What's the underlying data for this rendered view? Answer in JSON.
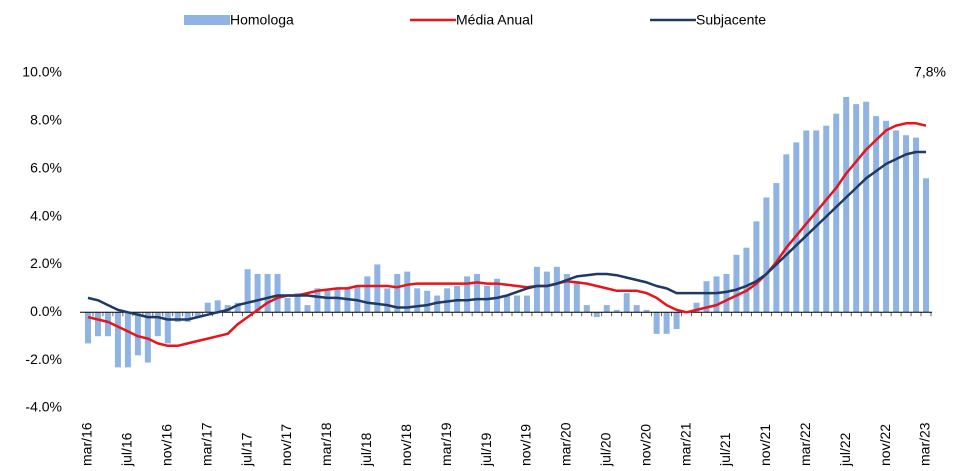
{
  "chart_data": {
    "type": "bar_line",
    "annotation": "7,8%",
    "categories": [
      "mar/16",
      null,
      null,
      null,
      "jul/16",
      null,
      null,
      null,
      "nov/16",
      null,
      null,
      null,
      "mar/17",
      null,
      null,
      null,
      "jul/17",
      null,
      null,
      null,
      "nov/17",
      null,
      null,
      null,
      "mar/18",
      null,
      null,
      null,
      "jul/18",
      null,
      null,
      null,
      "nov/18",
      null,
      null,
      null,
      "mar/19",
      null,
      null,
      null,
      "jul/19",
      null,
      null,
      null,
      "nov/19",
      null,
      null,
      null,
      "mar/20",
      null,
      null,
      null,
      "jul/20",
      null,
      null,
      null,
      "nov/20",
      null,
      null,
      null,
      "mar/21",
      null,
      null,
      null,
      "jul/21",
      null,
      null,
      null,
      "nov/21",
      null,
      null,
      null,
      "mar/22",
      null,
      null,
      null,
      "jul/22",
      null,
      null,
      null,
      "nov/22",
      null,
      null,
      null,
      "mar/23"
    ],
    "series": [
      {
        "name": "Homologa",
        "kind": "bar",
        "color": "#8fb4e3",
        "values": [
          -1.3,
          -1.0,
          -1.0,
          -2.3,
          -2.3,
          -1.8,
          -2.1,
          -1.0,
          -1.3,
          -0.4,
          -0.4,
          -0.2,
          0.4,
          0.5,
          0.3,
          0.4,
          1.8,
          1.6,
          1.6,
          1.6,
          0.6,
          0.8,
          0.3,
          1.0,
          0.9,
          1.0,
          1.0,
          1.1,
          1.5,
          2.0,
          1.0,
          1.6,
          1.7,
          1.0,
          0.9,
          0.7,
          1.0,
          1.1,
          1.5,
          1.6,
          1.1,
          1.4,
          0.7,
          0.7,
          0.7,
          1.9,
          1.7,
          1.9,
          1.6,
          1.3,
          0.3,
          -0.2,
          0.3,
          0.1,
          0.8,
          0.3,
          0.1,
          -0.9,
          -0.9,
          -0.7,
          0.0,
          0.4,
          1.3,
          1.5,
          1.6,
          2.4,
          2.7,
          3.8,
          4.8,
          5.4,
          6.6,
          7.1,
          7.6,
          7.6,
          7.8,
          8.3,
          9.0,
          8.7,
          8.8,
          8.2,
          8.0,
          7.6,
          7.4,
          7.3,
          5.6
        ]
      },
      {
        "name": "Média Anual",
        "kind": "line",
        "color": "#e8141b",
        "values": [
          -0.2,
          -0.3,
          -0.4,
          -0.6,
          -0.8,
          -1.0,
          -1.1,
          -1.3,
          -1.4,
          -1.4,
          -1.3,
          -1.2,
          -1.1,
          -1.0,
          -0.9,
          -0.5,
          -0.2,
          0.1,
          0.4,
          0.6,
          0.7,
          0.7,
          0.8,
          0.9,
          0.95,
          1.0,
          1.0,
          1.1,
          1.1,
          1.1,
          1.1,
          1.05,
          1.15,
          1.2,
          1.2,
          1.2,
          1.2,
          1.2,
          1.2,
          1.25,
          1.2,
          1.2,
          1.15,
          1.1,
          1.05,
          1.1,
          1.1,
          1.2,
          1.3,
          1.25,
          1.2,
          1.1,
          1.0,
          0.9,
          0.9,
          0.9,
          0.8,
          0.6,
          0.3,
          0.1,
          0.0,
          0.1,
          0.2,
          0.3,
          0.5,
          0.7,
          0.9,
          1.2,
          1.6,
          2.1,
          2.7,
          3.2,
          3.7,
          4.2,
          4.7,
          5.2,
          5.8,
          6.3,
          6.8,
          7.2,
          7.6,
          7.8,
          7.9,
          7.9,
          7.8
        ]
      },
      {
        "name": "Subjacente",
        "kind": "line",
        "color": "#1f3864",
        "values": [
          0.6,
          0.5,
          0.3,
          0.1,
          0.0,
          -0.1,
          -0.2,
          -0.2,
          -0.3,
          -0.3,
          -0.3,
          -0.2,
          -0.1,
          0.0,
          0.1,
          0.3,
          0.4,
          0.5,
          0.6,
          0.7,
          0.7,
          0.7,
          0.7,
          0.65,
          0.6,
          0.6,
          0.55,
          0.5,
          0.4,
          0.35,
          0.3,
          0.2,
          0.2,
          0.25,
          0.3,
          0.4,
          0.45,
          0.5,
          0.5,
          0.55,
          0.55,
          0.6,
          0.7,
          0.85,
          1.0,
          1.1,
          1.1,
          1.2,
          1.35,
          1.5,
          1.55,
          1.6,
          1.6,
          1.55,
          1.45,
          1.35,
          1.25,
          1.1,
          1.0,
          0.8,
          0.8,
          0.8,
          0.8,
          0.8,
          0.85,
          0.95,
          1.1,
          1.3,
          1.6,
          2.0,
          2.4,
          2.8,
          3.2,
          3.6,
          4.0,
          4.4,
          4.8,
          5.2,
          5.6,
          5.9,
          6.2,
          6.4,
          6.6,
          6.7,
          6.7
        ]
      }
    ],
    "ylim": [
      -4,
      10
    ],
    "yticks": [
      {
        "value": -4,
        "label": "-4.0%"
      },
      {
        "value": -2,
        "label": "-2.0%"
      },
      {
        "value": 0,
        "label": "0.0%"
      },
      {
        "value": 2,
        "label": "2.0%"
      },
      {
        "value": 4,
        "label": "4.0%"
      },
      {
        "value": 6,
        "label": "6.0%"
      },
      {
        "value": 8,
        "label": "8.0%"
      },
      {
        "value": 10,
        "label": "10.0%"
      }
    ],
    "legend": "top"
  }
}
